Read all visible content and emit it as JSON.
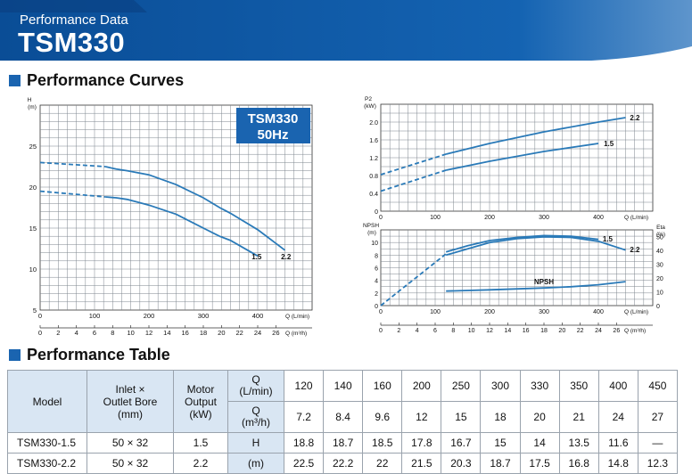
{
  "header": {
    "subtitle": "Performance Data",
    "title": "TSM330"
  },
  "sections": {
    "curves": "Performance Curves",
    "table": "Performance Table"
  },
  "chart_data": [
    {
      "type": "line",
      "badge": [
        "TSM330",
        "50Hz"
      ],
      "ylabel": [
        "H",
        "(m)"
      ],
      "xlabel": "Q (L/min)",
      "x2label": "Q (m³/h)",
      "xlim": [
        0,
        450
      ],
      "ylim": [
        5,
        30
      ],
      "xticks": [
        0,
        100,
        200,
        300,
        400
      ],
      "x2ticks": [
        0,
        2,
        4,
        6,
        8,
        10,
        12,
        14,
        16,
        18,
        20,
        22,
        24,
        26
      ],
      "yticks": [
        5,
        10,
        15,
        20,
        25
      ],
      "grid": true,
      "series": [
        {
          "name": "2.2",
          "x": [
            120,
            140,
            160,
            200,
            250,
            300,
            330,
            350,
            400,
            450
          ],
          "values": [
            22.5,
            22.2,
            22,
            21.5,
            20.3,
            18.7,
            17.5,
            16.8,
            14.8,
            12.3
          ],
          "dashed_x": [
            0,
            120
          ],
          "dashed_values": [
            23.0,
            22.5
          ]
        },
        {
          "name": "1.5",
          "x": [
            120,
            140,
            160,
            200,
            250,
            300,
            330,
            350,
            400
          ],
          "values": [
            18.8,
            18.7,
            18.5,
            17.8,
            16.7,
            15,
            14,
            13.5,
            11.6
          ],
          "dashed_x": [
            0,
            120
          ],
          "dashed_values": [
            19.5,
            18.8
          ]
        }
      ]
    },
    {
      "type": "line",
      "ylabel": [
        "P2",
        "(kW)"
      ],
      "xlabel": "Q (L/min)",
      "xlim": [
        0,
        450
      ],
      "ylim": [
        0,
        2.4
      ],
      "xticks": [
        0,
        100,
        200,
        300,
        400
      ],
      "yticks": [
        0,
        0.4,
        0.8,
        1.2,
        1.6,
        2.0
      ],
      "grid": true,
      "series": [
        {
          "name": "2.2",
          "x": [
            120,
            200,
            300,
            400,
            450
          ],
          "values": [
            1.28,
            1.52,
            1.78,
            2.0,
            2.1
          ],
          "dashed_x": [
            0,
            120
          ],
          "dashed_values": [
            0.82,
            1.28
          ]
        },
        {
          "name": "1.5",
          "x": [
            120,
            200,
            300,
            400
          ],
          "values": [
            0.92,
            1.12,
            1.34,
            1.52
          ],
          "dashed_x": [
            0,
            120
          ],
          "dashed_values": [
            0.45,
            0.92
          ]
        }
      ]
    },
    {
      "type": "line",
      "ylabel": [
        "NPSH",
        "(m)"
      ],
      "y2label": [
        "Eta",
        "(%)"
      ],
      "xlabel": "Q (L/min)",
      "x2label": "Q (m³/h)",
      "xlim": [
        0,
        450
      ],
      "ylim": [
        0,
        12
      ],
      "y2lim": [
        0,
        55
      ],
      "xticks": [
        0,
        100,
        200,
        300,
        400
      ],
      "x2ticks": [
        0,
        2,
        4,
        6,
        8,
        10,
        12,
        14,
        16,
        18,
        20,
        22,
        24,
        26
      ],
      "yticks": [
        0,
        2,
        4,
        6,
        8,
        10
      ],
      "y2ticks": [
        0,
        10,
        20,
        30,
        40,
        50
      ],
      "grid": true,
      "series": [
        {
          "name": "NPSH",
          "x": [
            120,
            200,
            300,
            350,
            400,
            450
          ],
          "values": [
            2.3,
            2.5,
            2.8,
            3.0,
            3.3,
            3.8
          ]
        },
        {
          "name": "1.5",
          "x": [
            120,
            160,
            200,
            250,
            300,
            350,
            400
          ],
          "values": [
            8.5,
            9.5,
            10.3,
            10.8,
            11.1,
            11.0,
            10.5
          ]
        },
        {
          "name": "2.2",
          "x": [
            120,
            160,
            200,
            250,
            300,
            350,
            400,
            450
          ],
          "values": [
            8.0,
            9.0,
            10.0,
            10.6,
            10.9,
            10.8,
            10.2,
            8.8
          ]
        },
        {
          "name": "",
          "x": [
            0,
            120
          ],
          "values": [
            0.0,
            8.2
          ],
          "dashed": true
        }
      ]
    },
    {
      "type": "table",
      "headers": {
        "model": "Model",
        "inlet": [
          "Inlet ×",
          "Outlet Bore",
          "(mm)"
        ],
        "motor": [
          "Motor",
          "Output",
          "(kW)"
        ],
        "q_lmin": [
          "Q",
          "(L/min)"
        ],
        "q_m3h": [
          "Q",
          "(m³/h)"
        ]
      },
      "flow_lmin": [
        "120",
        "140",
        "160",
        "200",
        "250",
        "300",
        "330",
        "350",
        "400",
        "450"
      ],
      "flow_m3h": [
        "7.2",
        "8.4",
        "9.6",
        "12",
        "15",
        "18",
        "20",
        "21",
        "24",
        "27"
      ],
      "head_label": [
        "H",
        "(m)"
      ],
      "rows": [
        {
          "model": "TSM330-1.5",
          "bore": "50 × 32",
          "output": "1.5",
          "values": [
            "18.8",
            "18.7",
            "18.5",
            "17.8",
            "16.7",
            "15",
            "14",
            "13.5",
            "11.6",
            "—"
          ]
        },
        {
          "model": "TSM330-2.2",
          "bore": "50 × 32",
          "output": "2.2",
          "values": [
            "22.5",
            "22.2",
            "22",
            "21.5",
            "20.3",
            "18.7",
            "17.5",
            "16.8",
            "14.8",
            "12.3"
          ]
        }
      ]
    }
  ],
  "colors": {
    "header": "#0a4d96",
    "accent": "#1a64b0",
    "curve": "#2a7ab8",
    "grid": "#7d858e",
    "table_header": "#d9e6f3"
  }
}
